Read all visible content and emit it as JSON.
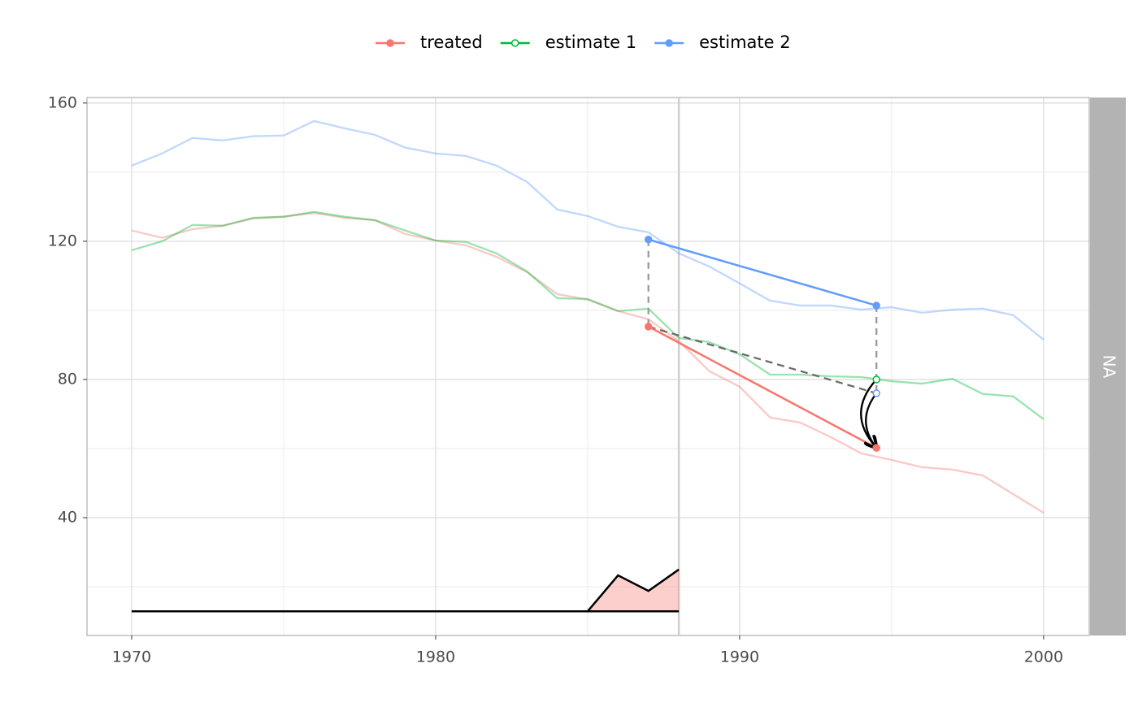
{
  "chart_data": {
    "type": "line",
    "x": [
      1970,
      1971,
      1972,
      1973,
      1974,
      1975,
      1976,
      1977,
      1978,
      1979,
      1980,
      1981,
      1982,
      1983,
      1984,
      1985,
      1986,
      1987,
      1988,
      1989,
      1990,
      1991,
      1992,
      1993,
      1994,
      1995,
      1996,
      1997,
      1998,
      1999,
      2000
    ],
    "series": [
      {
        "name": "treated",
        "color": "#f8766d",
        "values": [
          123.1,
          121.0,
          123.5,
          124.5,
          126.6,
          127.1,
          128.2,
          126.8,
          126.1,
          122.1,
          120.2,
          118.8,
          115.5,
          111.1,
          104.7,
          103.1,
          99.8,
          97.4,
          91.1,
          82.4,
          77.9,
          69.0,
          67.5,
          63.3,
          58.6,
          56.7,
          54.6,
          53.9,
          52.2,
          46.8,
          41.4
        ],
        "highlight_values": [
          95.3,
          60.2
        ]
      },
      {
        "name": "estimate 1",
        "color": "#00ba38",
        "values": [
          117.4,
          120.0,
          124.7,
          124.5,
          126.8,
          127.1,
          128.5,
          127.1,
          126.1,
          123.1,
          120.2,
          119.8,
          116.5,
          111.3,
          103.5,
          103.3,
          99.8,
          100.5,
          92.0,
          90.8,
          87.3,
          81.4,
          81.4,
          80.9,
          80.7,
          79.5,
          78.8,
          80.2,
          75.8,
          75.1,
          68.5
        ],
        "highlight_values": [
          null,
          80.0
        ]
      },
      {
        "name": "estimate 2",
        "color": "#619cff",
        "values": [
          141.9,
          145.4,
          149.9,
          149.2,
          150.4,
          150.6,
          154.8,
          152.7,
          150.8,
          147.1,
          145.4,
          144.7,
          141.9,
          137.2,
          129.2,
          127.3,
          124.2,
          122.6,
          116.5,
          112.7,
          107.8,
          102.8,
          101.4,
          101.4,
          100.2,
          100.9,
          99.3,
          100.2,
          100.5,
          98.6,
          91.5
        ],
        "highlight_values": [
          120.5,
          101.4
        ]
      }
    ],
    "highlight_x": [
      1987,
      1994.5
    ],
    "projection": {
      "x": [
        1987,
        1994.5
      ],
      "values": [
        95.3,
        76.0
      ]
    },
    "treatment_x": 1988,
    "weights": {
      "x": [
        1970,
        1985,
        1986,
        1987,
        1988
      ],
      "values": [
        12.9,
        12.9,
        23.3,
        18.8,
        25.0
      ],
      "base": 12.9,
      "color": "#f8766d"
    },
    "xlim": [
      1968.53,
      2001.5
    ],
    "ylim": [
      5.9,
      161.6
    ],
    "xticks": [
      1970,
      1980,
      1990,
      2000
    ],
    "yticks": [
      40,
      80,
      120,
      160
    ],
    "xminor": [
      1975,
      1985,
      1995
    ],
    "yminor": [
      20,
      60,
      100,
      140
    ],
    "grid": true,
    "legend": "top",
    "strip": "NA"
  }
}
